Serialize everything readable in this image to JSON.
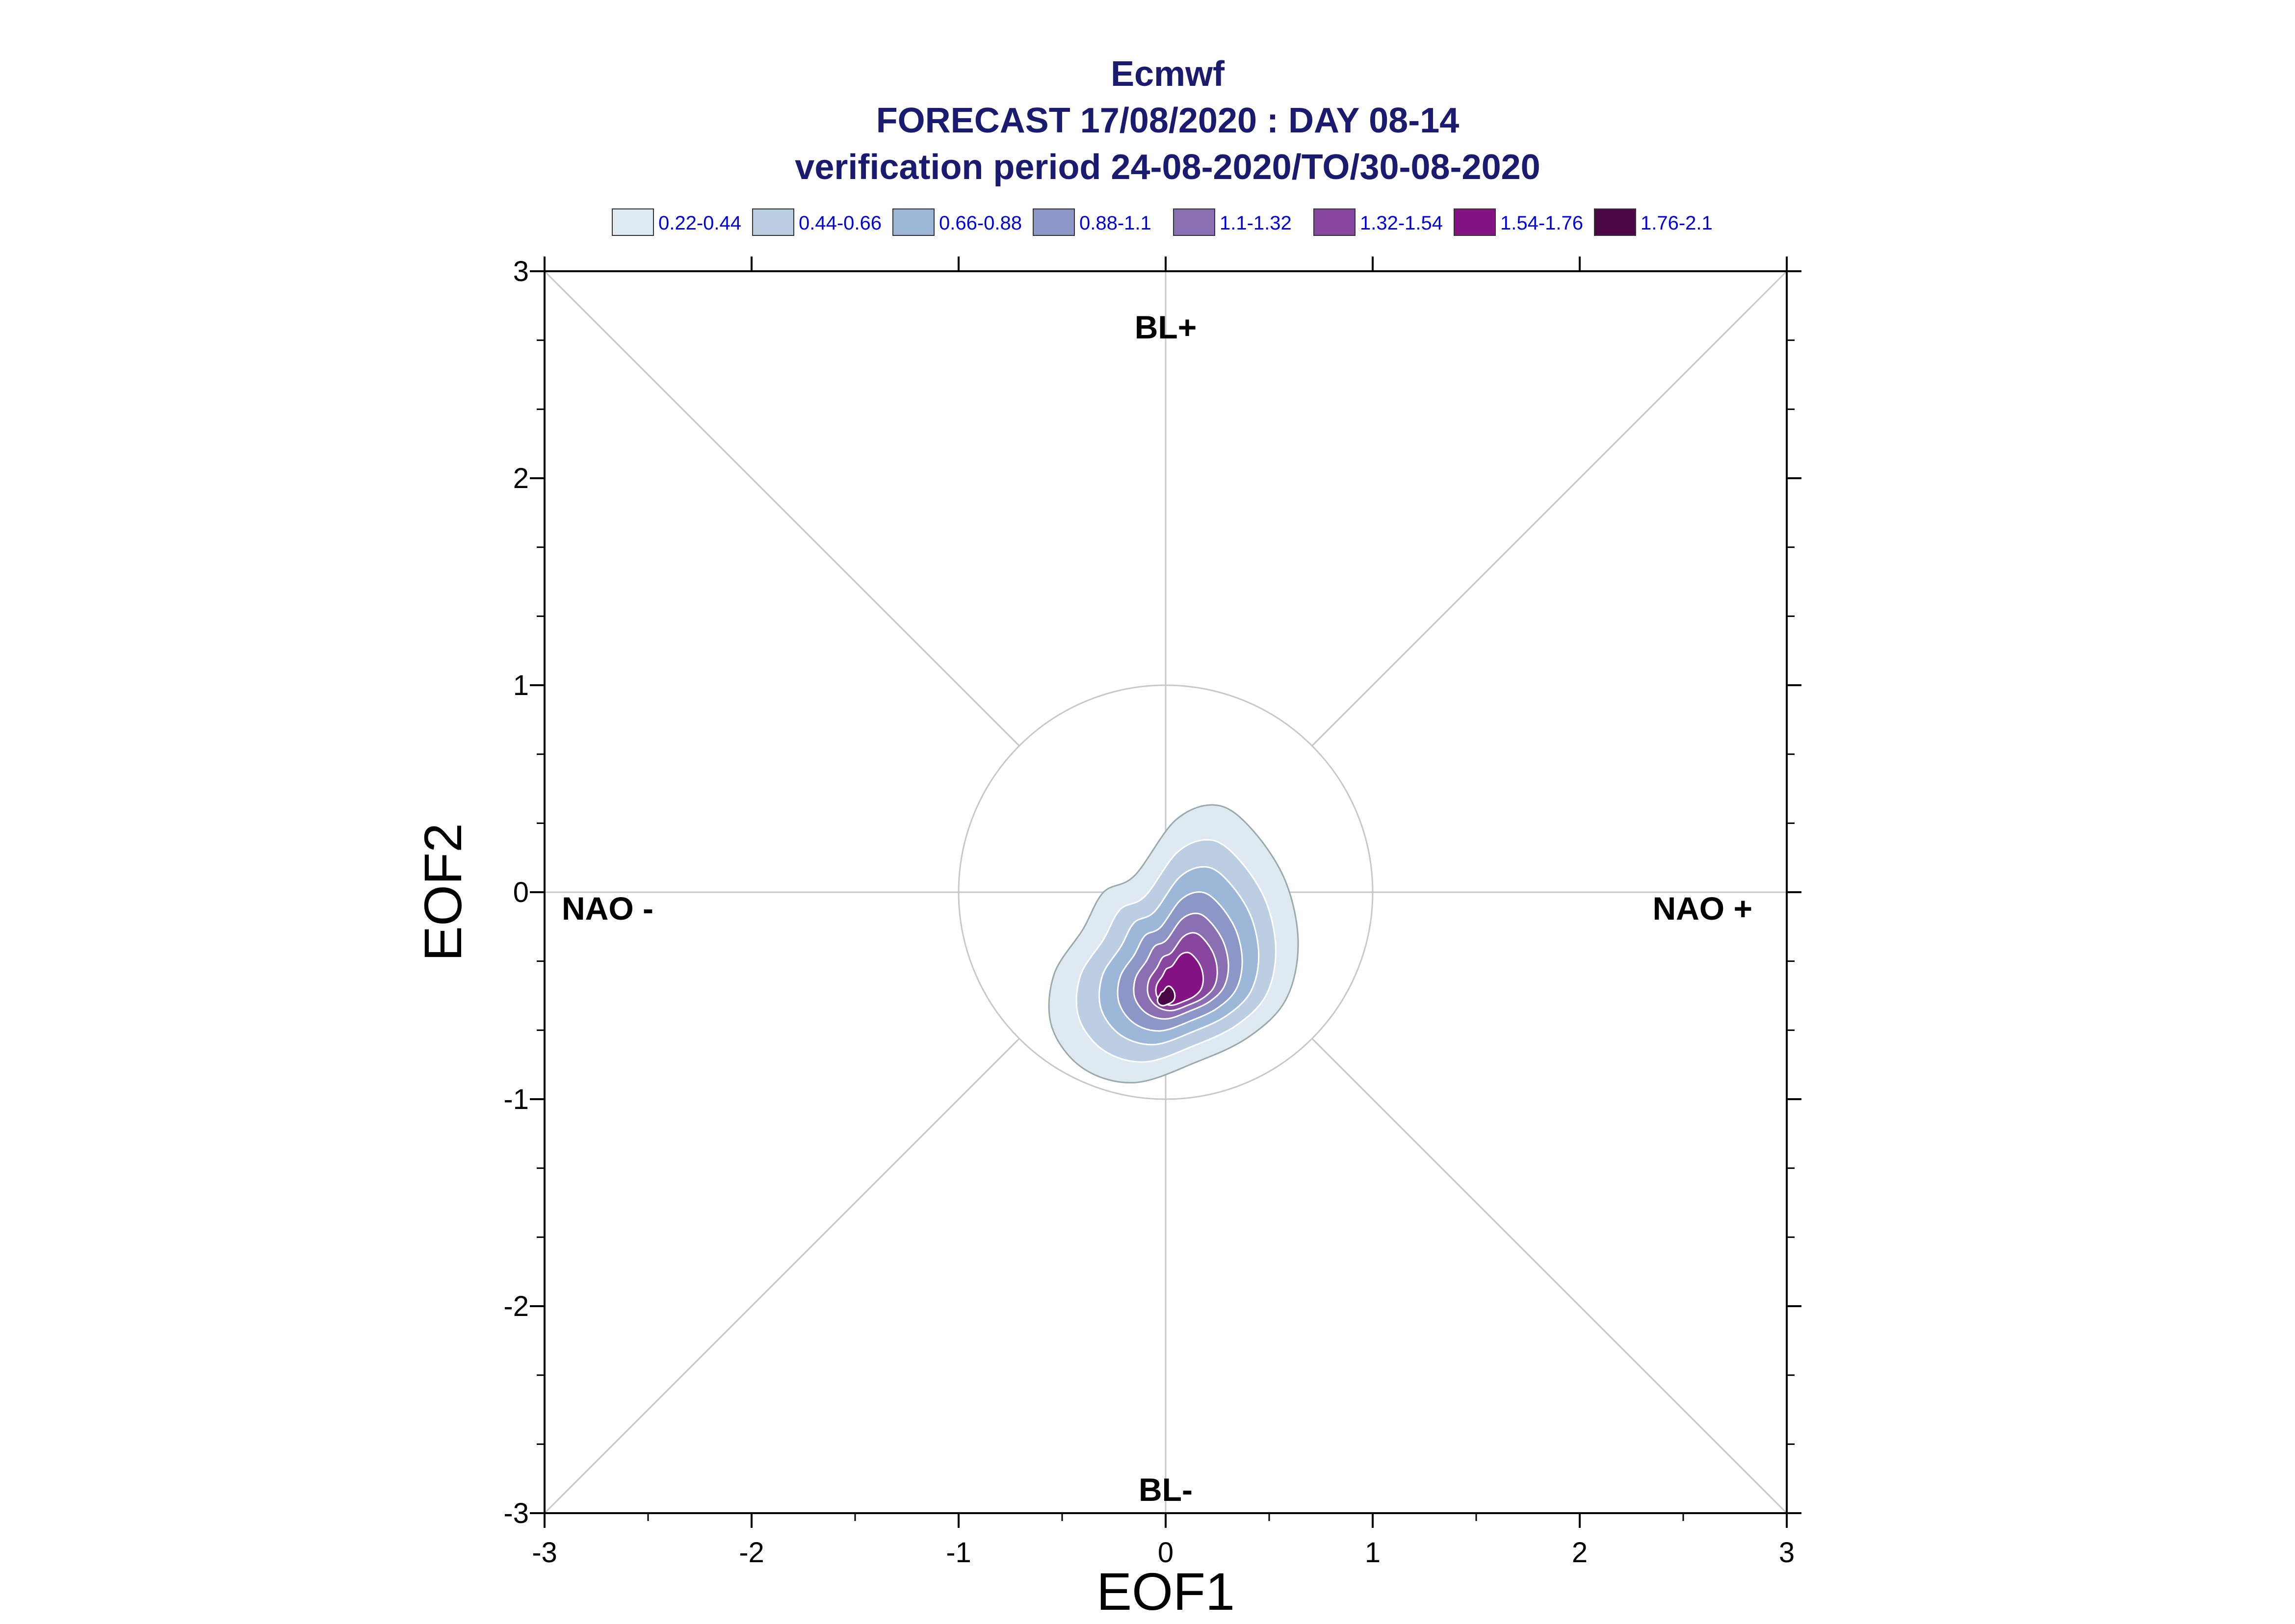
{
  "chart_data": {
    "type": "contour",
    "title_lines": [
      "Ecmwf",
      "FORECAST 17/08/2020 : DAY 08-14",
      "verification period 24-08-2020/TO/30-08-2020"
    ],
    "xlabel": "EOF1",
    "ylabel": "EOF2",
    "xlim": [
      -3,
      3
    ],
    "ylim": [
      -3,
      3
    ],
    "x_ticks": [
      "-3",
      "-2",
      "-1",
      "0",
      "1",
      "2",
      "3"
    ],
    "y_ticks": [
      "3",
      "2",
      "1",
      "0",
      "-1",
      "-2",
      "-3"
    ],
    "regime_labels": {
      "top": "BL+",
      "bottom": "BL-",
      "left": "NAO -",
      "right": "NAO +"
    },
    "reference_circle_radius": 1,
    "diagonal_lines": true,
    "legend_position": "top",
    "levels": [
      {
        "label": "0.22-0.44",
        "color": "#dfe9f2"
      },
      {
        "label": "0.44-0.66",
        "color": "#bccfe2"
      },
      {
        "label": "0.66-0.88",
        "color": "#9cb7d7"
      },
      {
        "label": "0.88-1.1",
        "color": "#8c97c8"
      },
      {
        "label": "1.1-1.32",
        "color": "#8a70b3"
      },
      {
        "label": "1.32-1.54",
        "color": "#88479f"
      },
      {
        "label": "1.54-1.76",
        "color": "#851283"
      },
      {
        "label": "1.76-2.1",
        "color": "#4a0645"
      }
    ],
    "density_peak": {
      "x": 0.0,
      "y": -0.52
    }
  }
}
